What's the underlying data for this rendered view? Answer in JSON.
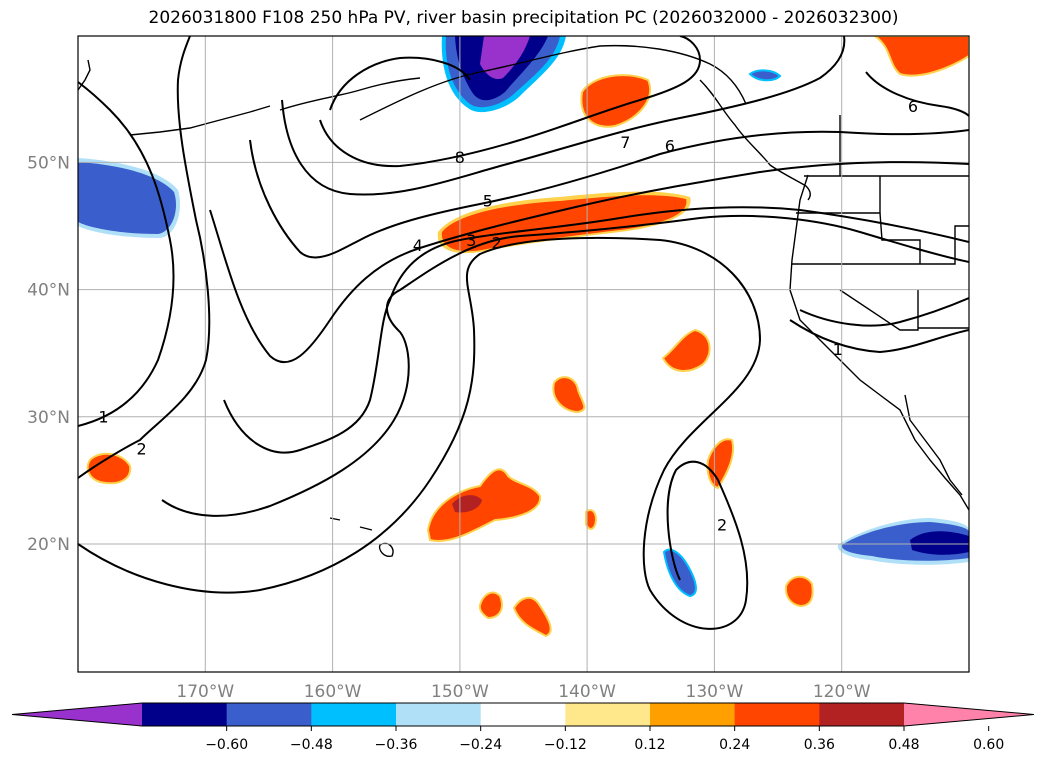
{
  "title": "2026031800 F108 250 hPa PV, river basin precipitation PC (2026032000 - 2026032300)",
  "map": {
    "projection": "PlateCarree",
    "lon_range": [
      -180,
      -110
    ],
    "lat_range": [
      10,
      60
    ],
    "lat_ticks": [
      {
        "value": 50,
        "label": "50°N"
      },
      {
        "value": 40,
        "label": "40°N"
      },
      {
        "value": 30,
        "label": "30°N"
      },
      {
        "value": 20,
        "label": "20°N"
      }
    ],
    "lon_ticks": [
      {
        "value": -170,
        "label": "170°W"
      },
      {
        "value": -160,
        "label": "160°W"
      },
      {
        "value": -150,
        "label": "150°W"
      },
      {
        "value": -140,
        "label": "140°W"
      },
      {
        "value": -130,
        "label": "130°W"
      },
      {
        "value": -120,
        "label": "120°W"
      }
    ],
    "contour_labels": [
      {
        "text": "1",
        "lon": -178.0,
        "lat": 30.0
      },
      {
        "text": "2",
        "lon": -175.0,
        "lat": 27.5
      },
      {
        "text": "8",
        "lon": -150.0,
        "lat": 50.4
      },
      {
        "text": "7",
        "lon": -137.0,
        "lat": 51.6
      },
      {
        "text": "6",
        "lon": -133.5,
        "lat": 51.3
      },
      {
        "text": "6",
        "lon": -114.4,
        "lat": 54.4
      },
      {
        "text": "5",
        "lon": -147.8,
        "lat": 47.0
      },
      {
        "text": "4",
        "lon": -153.3,
        "lat": 43.5
      },
      {
        "text": "3",
        "lon": -149.1,
        "lat": 43.9
      },
      {
        "text": "2",
        "lon": -147.1,
        "lat": 43.7
      },
      {
        "text": "1",
        "lon": -120.3,
        "lat": 35.3
      },
      {
        "text": "2",
        "lon": -129.4,
        "lat": 21.5
      }
    ]
  },
  "colorbar": {
    "colors": [
      "#9932cc",
      "#00008b",
      "#3a5fcd",
      "#00bfff",
      "#afe0f8",
      "#ffffff",
      "#ffe88c",
      "#ff9f00",
      "#ff4500",
      "#b22222",
      "#ff82ab"
    ],
    "tick_labels": [
      "−0.60",
      "−0.48",
      "−0.36",
      "−0.24",
      "−0.12",
      "0.12",
      "0.24",
      "0.36",
      "0.48",
      "0.60"
    ]
  }
}
